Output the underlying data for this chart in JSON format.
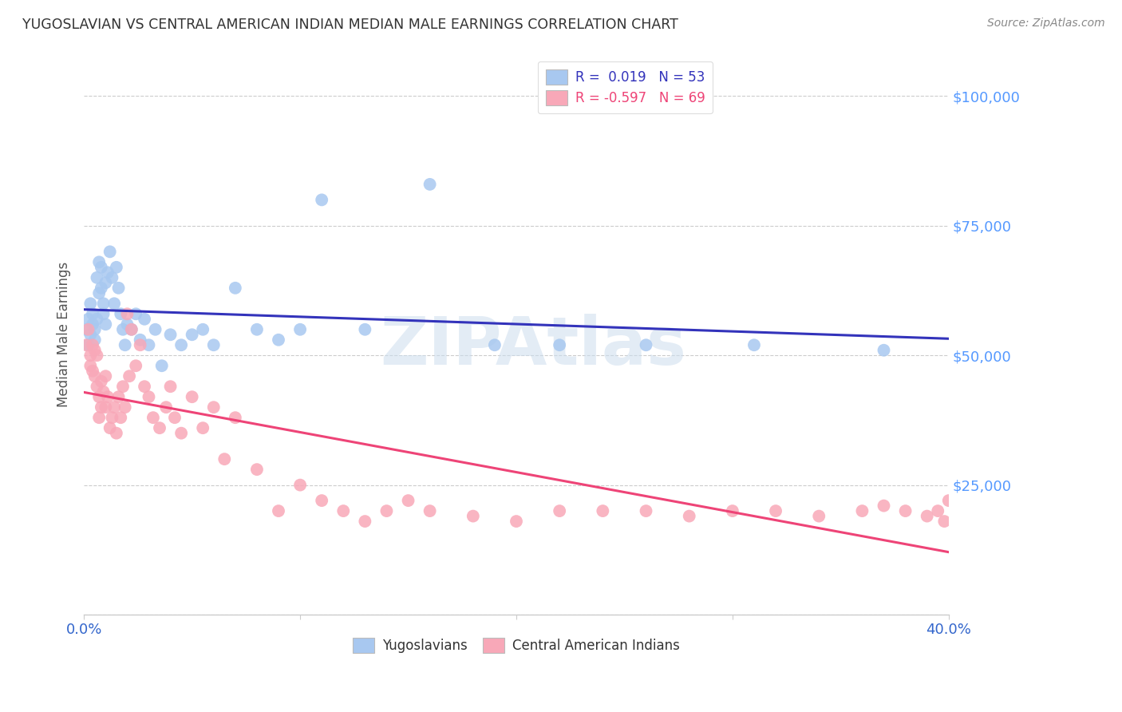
{
  "title": "YUGOSLAVIAN VS CENTRAL AMERICAN INDIAN MEDIAN MALE EARNINGS CORRELATION CHART",
  "source": "Source: ZipAtlas.com",
  "ylabel": "Median Male Earnings",
  "y_ticks": [
    0,
    25000,
    50000,
    75000,
    100000
  ],
  "y_tick_labels": [
    "",
    "$25,000",
    "$50,000",
    "$75,000",
    "$100,000"
  ],
  "x_min": 0.0,
  "x_max": 0.4,
  "y_min": 0,
  "y_max": 108000,
  "watermark": "ZIPAtlas",
  "legend_blue_label": "Yugoslavians",
  "legend_pink_label": "Central American Indians",
  "R_blue": "0.019",
  "N_blue": "53",
  "R_pink": "-0.597",
  "N_pink": "69",
  "blue_color": "#a8c8f0",
  "pink_color": "#f8a8b8",
  "blue_line_color": "#3333bb",
  "pink_line_color": "#ee4477",
  "grid_color": "#cccccc",
  "background_color": "#ffffff",
  "title_color": "#333333",
  "axis_label_color": "#555555",
  "ytick_label_color": "#5599ff",
  "blue_scatter_x": [
    0.001,
    0.002,
    0.002,
    0.003,
    0.003,
    0.004,
    0.004,
    0.005,
    0.005,
    0.006,
    0.006,
    0.007,
    0.007,
    0.008,
    0.008,
    0.009,
    0.009,
    0.01,
    0.01,
    0.011,
    0.012,
    0.013,
    0.014,
    0.015,
    0.016,
    0.017,
    0.018,
    0.019,
    0.02,
    0.022,
    0.024,
    0.026,
    0.028,
    0.03,
    0.033,
    0.036,
    0.04,
    0.045,
    0.05,
    0.055,
    0.06,
    0.07,
    0.08,
    0.09,
    0.1,
    0.11,
    0.13,
    0.16,
    0.19,
    0.22,
    0.26,
    0.31,
    0.37
  ],
  "blue_scatter_y": [
    55000,
    57000,
    52000,
    60000,
    54000,
    56000,
    58000,
    55000,
    53000,
    57000,
    65000,
    68000,
    62000,
    67000,
    63000,
    60000,
    58000,
    64000,
    56000,
    66000,
    70000,
    65000,
    60000,
    67000,
    63000,
    58000,
    55000,
    52000,
    56000,
    55000,
    58000,
    53000,
    57000,
    52000,
    55000,
    48000,
    54000,
    52000,
    54000,
    55000,
    52000,
    63000,
    55000,
    53000,
    55000,
    80000,
    55000,
    83000,
    52000,
    52000,
    52000,
    52000,
    51000
  ],
  "pink_scatter_x": [
    0.001,
    0.002,
    0.003,
    0.003,
    0.004,
    0.004,
    0.005,
    0.005,
    0.006,
    0.006,
    0.007,
    0.007,
    0.008,
    0.008,
    0.009,
    0.01,
    0.01,
    0.011,
    0.012,
    0.013,
    0.014,
    0.015,
    0.016,
    0.017,
    0.018,
    0.019,
    0.02,
    0.021,
    0.022,
    0.024,
    0.026,
    0.028,
    0.03,
    0.032,
    0.035,
    0.038,
    0.04,
    0.042,
    0.045,
    0.05,
    0.055,
    0.06,
    0.065,
    0.07,
    0.08,
    0.09,
    0.1,
    0.11,
    0.12,
    0.13,
    0.14,
    0.15,
    0.16,
    0.18,
    0.2,
    0.22,
    0.24,
    0.26,
    0.28,
    0.3,
    0.32,
    0.34,
    0.36,
    0.37,
    0.38,
    0.39,
    0.395,
    0.398,
    0.4
  ],
  "pink_scatter_y": [
    52000,
    55000,
    50000,
    48000,
    52000,
    47000,
    51000,
    46000,
    50000,
    44000,
    38000,
    42000,
    40000,
    45000,
    43000,
    46000,
    40000,
    42000,
    36000,
    38000,
    40000,
    35000,
    42000,
    38000,
    44000,
    40000,
    58000,
    46000,
    55000,
    48000,
    52000,
    44000,
    42000,
    38000,
    36000,
    40000,
    44000,
    38000,
    35000,
    42000,
    36000,
    40000,
    30000,
    38000,
    28000,
    20000,
    25000,
    22000,
    20000,
    18000,
    20000,
    22000,
    20000,
    19000,
    18000,
    20000,
    20000,
    20000,
    19000,
    20000,
    20000,
    19000,
    20000,
    21000,
    20000,
    19000,
    20000,
    18000,
    22000
  ]
}
